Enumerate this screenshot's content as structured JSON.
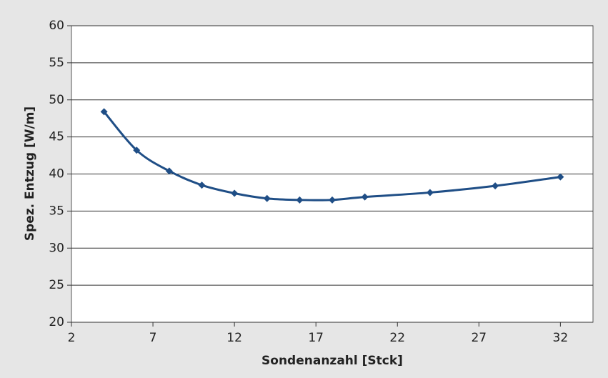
{
  "chart_data": {
    "type": "line",
    "x_label": "Sondenanzahl [Stck]",
    "y_label": "Spez. Entzug [W/m]",
    "x": [
      4,
      6,
      8,
      10,
      12,
      14,
      16,
      18,
      20,
      24,
      28,
      32
    ],
    "series": [
      {
        "name": "Spez. Entzug",
        "color": "#1f4e86",
        "values": [
          48.4,
          43.2,
          40.4,
          38.5,
          37.4,
          36.7,
          36.5,
          36.5,
          36.9,
          37.5,
          38.4,
          39.6
        ]
      }
    ],
    "xlim": [
      2,
      34
    ],
    "xticks": [
      2,
      7,
      12,
      17,
      22,
      27,
      32
    ],
    "ylim": [
      20,
      60
    ],
    "yticks": [
      20,
      25,
      30,
      35,
      40,
      45,
      50,
      55,
      60
    ],
    "grid": true,
    "smooth": true
  }
}
